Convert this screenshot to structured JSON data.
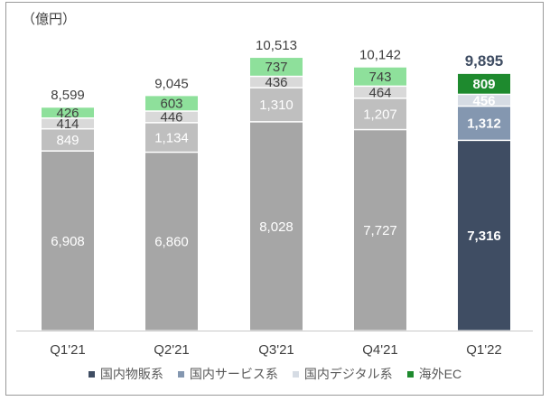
{
  "chart_data": {
    "type": "bar",
    "stacked": true,
    "unit_label": "（億円）",
    "categories": [
      "Q1'21",
      "Q2'21",
      "Q3'21",
      "Q4'21",
      "Q1'22"
    ],
    "series": [
      {
        "name": "国内物販系",
        "values": [
          6908,
          6860,
          8028,
          7727,
          7316
        ],
        "labels": [
          "6,908",
          "6,860",
          "8,028",
          "7,727",
          "7,316"
        ],
        "color": "#3f4d63",
        "muted_color": "#a6a6a6"
      },
      {
        "name": "国内サービス系",
        "values": [
          849,
          1134,
          1310,
          1207,
          1312
        ],
        "labels": [
          "849",
          "1,134",
          "1,310",
          "1,207",
          "1,312"
        ],
        "color": "#8497b0",
        "muted_color": "#bfbfbf"
      },
      {
        "name": "国内デジタル系",
        "values": [
          414,
          446,
          436,
          464,
          456
        ],
        "labels": [
          "414",
          "446",
          "436",
          "464",
          "456"
        ],
        "color": "#d6dce4",
        "muted_color": "#d9d9d9"
      },
      {
        "name": "海外EC",
        "values": [
          426,
          603,
          737,
          743,
          809
        ],
        "labels": [
          "426",
          "603",
          "737",
          "743",
          "809"
        ],
        "color": "#1e8a2e",
        "muted_color": "#8ee09b"
      }
    ],
    "totals": [
      8599,
      9045,
      10513,
      10142,
      9895
    ],
    "total_labels": [
      "8,599",
      "9,045",
      "10,513",
      "10,142",
      "9,895"
    ],
    "highlighted_category": "Q1'22",
    "ylim": [
      0,
      10513
    ],
    "grid": false,
    "legend_position": "bottom"
  }
}
